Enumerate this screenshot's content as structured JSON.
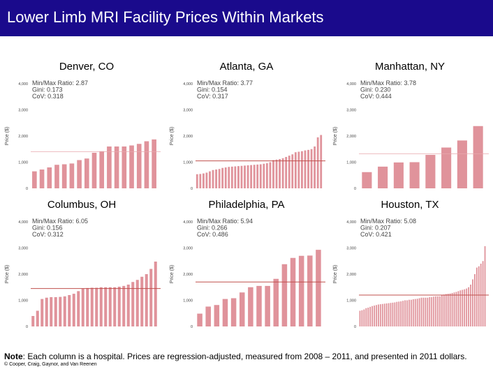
{
  "title": "Lower Limb MRI Facility Prices Within Markets",
  "note_label": "Note",
  "note_text": ": Each column is a hospital. Prices are regression-adjusted, measured from 2008 – 2011, and presented in 2011 dollars.",
  "copyright": "© Cooper, Craig, Gaynor, and Van Reenen",
  "colors": {
    "bar": "#e0939b",
    "mean_line": "#c0504d",
    "faint_line": "#e8a9ae",
    "header": "#1a0a8c"
  },
  "chart_data": [
    {
      "type": "bar",
      "title": "Denver, CO",
      "ylabel": "Price ($)",
      "ylim": [
        0,
        4000
      ],
      "yticks": [
        "0",
        "1,000",
        "2,000",
        "3,000",
        "4,000"
      ],
      "stats": [
        "Min/Max Ratio: 2.87",
        "Gini: 0.173",
        "CoV: 0.318"
      ],
      "mean_line": 1400,
      "mean_style": "faint",
      "values": [
        650,
        720,
        800,
        900,
        920,
        950,
        1080,
        1140,
        1360,
        1420,
        1600,
        1600,
        1600,
        1640,
        1700,
        1800,
        1870
      ]
    },
    {
      "type": "bar",
      "title": "Atlanta, GA",
      "ylabel": "Price ($)",
      "ylim": [
        0,
        4000
      ],
      "yticks": [
        "0",
        "1,000",
        "2,000",
        "3,000",
        "4,000"
      ],
      "stats": [
        "Min/Max Ratio: 3.77",
        "Gini: 0.154",
        "CoV: 0.317"
      ],
      "mean_line": 1050,
      "mean_style": "strong",
      "values": [
        540,
        550,
        570,
        600,
        650,
        700,
        720,
        740,
        780,
        800,
        820,
        830,
        840,
        850,
        860,
        870,
        880,
        890,
        900,
        910,
        920,
        940,
        960,
        1000,
        1080,
        1100,
        1120,
        1150,
        1200,
        1250,
        1300,
        1380,
        1400,
        1420,
        1450,
        1470,
        1500,
        1600,
        1950,
        2040
      ]
    },
    {
      "type": "bar",
      "title": "Manhattan, NY",
      "ylabel": "Price ($)",
      "ylim": [
        0,
        4000
      ],
      "yticks": [
        "0",
        "1,000",
        "2,000",
        "3,000",
        "4,000"
      ],
      "stats": [
        "Min/Max Ratio: 3.78",
        "Gini: 0.230",
        "CoV: 0.444"
      ],
      "mean_line": 1320,
      "mean_style": "faint",
      "values": [
        620,
        830,
        990,
        1000,
        1280,
        1560,
        1830,
        2380
      ]
    },
    {
      "type": "bar",
      "title": "Columbus, OH",
      "ylabel": "Price ($)",
      "ylim": [
        0,
        4000
      ],
      "yticks": [
        "0",
        "1,000",
        "2,000",
        "3,000",
        "4,000"
      ],
      "stats": [
        "Min/Max Ratio: 6.05",
        "Gini: 0.156",
        "CoV: 0.312"
      ],
      "mean_line": 1450,
      "mean_style": "strong",
      "values": [
        400,
        600,
        1050,
        1100,
        1120,
        1120,
        1130,
        1150,
        1200,
        1250,
        1350,
        1450,
        1470,
        1480,
        1480,
        1500,
        1500,
        1500,
        1500,
        1520,
        1550,
        1600,
        1700,
        1780,
        1900,
        2000,
        2200,
        2480
      ]
    },
    {
      "type": "bar",
      "title": "Philadelphia, PA",
      "ylabel": "Price ($)",
      "ylim": [
        0,
        4000
      ],
      "yticks": [
        "0",
        "1,000",
        "2,000",
        "3,000",
        "4,000"
      ],
      "stats": [
        "Min/Max Ratio: 5.94",
        "Gini: 0.266",
        "CoV: 0.486"
      ],
      "mean_line": 1700,
      "mean_style": "strong",
      "values": [
        490,
        760,
        820,
        1050,
        1080,
        1300,
        1500,
        1550,
        1550,
        1820,
        2380,
        2620,
        2700,
        2710,
        2930
      ]
    },
    {
      "type": "bar",
      "title": "Houston, TX",
      "ylabel": "Price ($)",
      "ylim": [
        0,
        4000
      ],
      "yticks": [
        "0",
        "1,000",
        "2,000",
        "3,000",
        "4,000"
      ],
      "stats": [
        "Min/Max Ratio: 5.08",
        "Gini: 0.207",
        "CoV: 0.421"
      ],
      "mean_line": 1200,
      "mean_style": "strong",
      "values": [
        600,
        620,
        650,
        700,
        720,
        750,
        780,
        800,
        820,
        840,
        850,
        860,
        870,
        880,
        890,
        900,
        910,
        920,
        940,
        950,
        960,
        980,
        1000,
        1000,
        1020,
        1020,
        1040,
        1050,
        1060,
        1080,
        1100,
        1100,
        1100,
        1100,
        1120,
        1120,
        1140,
        1150,
        1150,
        1150,
        1200,
        1220,
        1240,
        1250,
        1260,
        1280,
        1300,
        1320,
        1350,
        1380,
        1400,
        1420,
        1450,
        1500,
        1600,
        1800,
        2000,
        2250,
        2300,
        2400,
        2500,
        3070
      ]
    }
  ]
}
